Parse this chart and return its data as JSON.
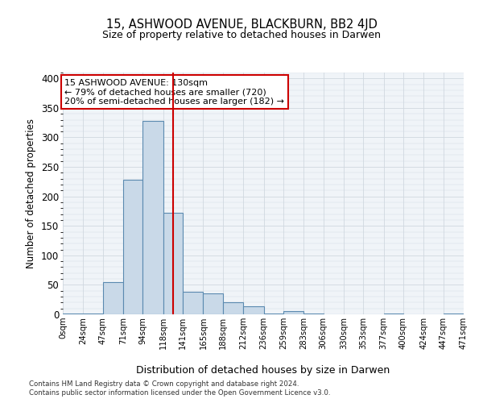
{
  "title": "15, ASHWOOD AVENUE, BLACKBURN, BB2 4JD",
  "subtitle": "Size of property relative to detached houses in Darwen",
  "xlabel": "Distribution of detached houses by size in Darwen",
  "ylabel": "Number of detached properties",
  "bin_edges": [
    0,
    24,
    47,
    71,
    94,
    118,
    141,
    165,
    188,
    212,
    236,
    259,
    283,
    306,
    330,
    353,
    377,
    400,
    424,
    447,
    471
  ],
  "bar_heights": [
    2,
    2,
    55,
    228,
    328,
    172,
    38,
    35,
    21,
    14,
    2,
    5,
    2,
    0,
    0,
    0,
    2,
    0,
    0,
    2
  ],
  "bar_facecolor": "#c9d9e8",
  "bar_edgecolor": "#5b8ab0",
  "property_line_x": 130,
  "property_line_color": "#cc0000",
  "annotation_title": "15 ASHWOOD AVENUE: 130sqm",
  "annotation_line1": "← 79% of detached houses are smaller (720)",
  "annotation_line2": "20% of semi-detached houses are larger (182) →",
  "annotation_box_edgecolor": "#cc0000",
  "ylim": [
    0,
    410
  ],
  "xlim": [
    0,
    471
  ],
  "yticks": [
    0,
    50,
    100,
    150,
    200,
    250,
    300,
    350,
    400
  ],
  "xtick_labels": [
    "0sqm",
    "24sqm",
    "47sqm",
    "71sqm",
    "94sqm",
    "118sqm",
    "141sqm",
    "165sqm",
    "188sqm",
    "212sqm",
    "236sqm",
    "259sqm",
    "283sqm",
    "306sqm",
    "330sqm",
    "353sqm",
    "377sqm",
    "400sqm",
    "424sqm",
    "447sqm",
    "471sqm"
  ],
  "footnote1": "Contains HM Land Registry data © Crown copyright and database right 2024.",
  "footnote2": "Contains public sector information licensed under the Open Government Licence v3.0.",
  "grid_color": "#d0d8e0",
  "background_color": "#f0f4f8"
}
